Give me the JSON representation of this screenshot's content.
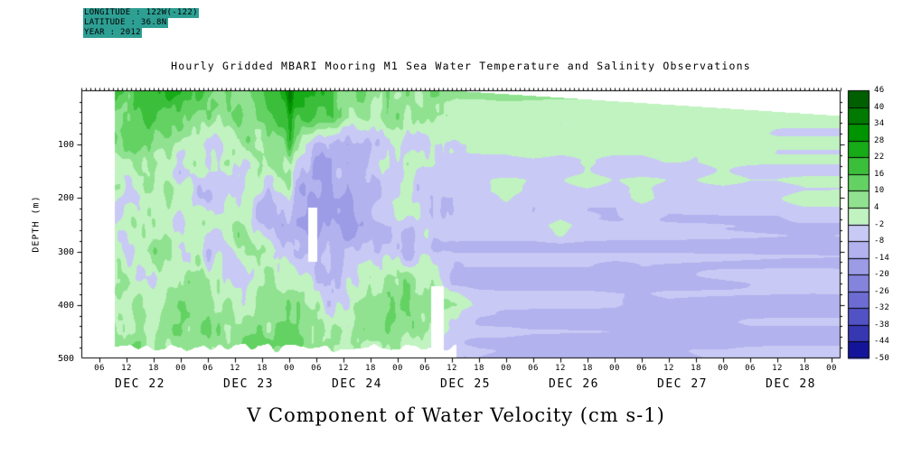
{
  "meta": {
    "line1": "LONGITUDE : 122W(-122)",
    "line2": "LATITUDE : 36.8N",
    "line3": "YEAR : 2012",
    "highlight_color": "#2e9f93"
  },
  "title": "Hourly Gridded MBARI Mooring M1 Sea Water Temperature and Salinity Observations",
  "caption": "V Component of Water Velocity (cm s-1)",
  "y_axis": {
    "label": "DEPTH (m)",
    "ticks": [
      "100",
      "200",
      "300",
      "400",
      "500"
    ]
  },
  "x_axis": {
    "hour_ticks": [
      "06",
      "12",
      "18",
      "00",
      "06",
      "12",
      "18",
      "00",
      "06",
      "12",
      "18",
      "00",
      "06",
      "12",
      "18",
      "00",
      "06",
      "12",
      "18",
      "00",
      "06",
      "12",
      "18",
      "00",
      "06",
      "12",
      "18",
      "00"
    ],
    "day_labels": [
      "DEC 22",
      "DEC 23",
      "DEC 24",
      "DEC 25",
      "DEC 26",
      "DEC 27",
      "DEC 28"
    ]
  },
  "colorbar": {
    "labels": [
      "46",
      "40",
      "34",
      "28",
      "22",
      "16",
      "10",
      "4",
      "-2",
      "-8",
      "-14",
      "-20",
      "-26",
      "-32",
      "-38",
      "-44",
      "-50"
    ]
  },
  "chart_data": {
    "type": "heatmap",
    "title": "Hourly Gridded MBARI Mooring M1 Sea Water Temperature and Salinity Observations",
    "ylabel": "DEPTH (m)",
    "units": "cm s-1",
    "x_days": [
      "DEC 22",
      "DEC 23",
      "DEC 24",
      "DEC 25",
      "DEC 26",
      "DEC 27",
      "DEC 28"
    ],
    "hours_per_column": 6,
    "depth_rows": [
      0,
      50,
      100,
      150,
      200,
      250,
      300,
      350,
      400,
      450,
      500
    ],
    "levels": [
      46,
      40,
      34,
      28,
      22,
      16,
      10,
      4,
      -2,
      -8,
      -14,
      -20,
      -26,
      -32,
      -38,
      -44,
      -50
    ],
    "colors": [
      "#005f00",
      "#007a00",
      "#009400",
      "#17ab17",
      "#3bbf3b",
      "#63d263",
      "#90e290",
      "#c0f3c0",
      "#c9c9f5",
      "#b2b2ee",
      "#9b9be6",
      "#8484dd",
      "#6c6cd2",
      "#5252c4",
      "#3737b2",
      "#14149b"
    ],
    "grid": [
      [
        16,
        18,
        14,
        20,
        22,
        16,
        12,
        18,
        26,
        20,
        12,
        8,
        8,
        6,
        4,
        4,
        6,
        5,
        4,
        4,
        5,
        4,
        4,
        3,
        4,
        3,
        3,
        3
      ],
      [
        12,
        14,
        10,
        16,
        14,
        10,
        8,
        12,
        18,
        14,
        8,
        5,
        4,
        3,
        3,
        3,
        4,
        3,
        2,
        3,
        3,
        2,
        3,
        2,
        3,
        2,
        2,
        2
      ],
      [
        8,
        5,
        9,
        7,
        3,
        -4,
        7,
        3,
        9,
        -8,
        -13,
        -6,
        1,
        -2,
        -3,
        -3,
        -3,
        1,
        -3,
        -3,
        -3,
        -3,
        1,
        -3,
        -3,
        1,
        -3,
        -3
      ],
      [
        5,
        -6,
        3,
        7,
        -6,
        3,
        -6,
        5,
        3,
        -15,
        -11,
        -5,
        -3,
        -4,
        -4,
        -4,
        -4,
        -4,
        -4,
        1,
        -4,
        -4,
        -4,
        -4,
        1,
        -4,
        -4,
        -4
      ],
      [
        3,
        5,
        -6,
        3,
        5,
        -9,
        3,
        -7,
        -5,
        -17,
        -13,
        -9,
        -4,
        -4,
        -5,
        -5,
        1,
        -5,
        -5,
        -5,
        -5,
        1,
        -5,
        -5,
        -5,
        -5,
        -5,
        1
      ],
      [
        7,
        -5,
        3,
        5,
        -7,
        3,
        5,
        -9,
        -13,
        -19,
        -15,
        -7,
        -6,
        -6,
        -6,
        -6,
        -6,
        -6,
        1,
        -6,
        -7,
        -7,
        -7,
        -7,
        -7,
        -7,
        -7,
        -7
      ],
      [
        5,
        3,
        -5,
        7,
        3,
        -7,
        3,
        5,
        -9,
        -15,
        -11,
        -5,
        -9,
        -9,
        -9,
        -9,
        -9,
        -9,
        -9,
        -9,
        -9,
        -9,
        -9,
        -9,
        -9,
        -9,
        -9,
        -9
      ],
      [
        7,
        5,
        3,
        -5,
        5,
        3,
        -7,
        3,
        3,
        -9,
        -7,
        3,
        7,
        3,
        -9,
        -9,
        -9,
        -9,
        -9,
        -9,
        -11,
        -9,
        -9,
        -9,
        -9,
        -9,
        -9,
        -9
      ],
      [
        5,
        7,
        5,
        3,
        7,
        5,
        3,
        7,
        5,
        3,
        -5,
        5,
        9,
        7,
        3,
        -7,
        -9,
        -9,
        -9,
        -9,
        -9,
        -11,
        -9,
        -9,
        -9,
        -9,
        -9,
        -9
      ],
      [
        7,
        9,
        7,
        5,
        9,
        7,
        5,
        9,
        7,
        5,
        3,
        7,
        5,
        3,
        -5,
        -7,
        -7,
        -9,
        -9,
        -9,
        -9,
        -9,
        -9,
        -9,
        -11,
        -9,
        -9,
        -9
      ],
      [
        7,
        7,
        9,
        7,
        7,
        9,
        7,
        7,
        9,
        7,
        5,
        5,
        3,
        -5,
        -7,
        -7,
        -7,
        -7,
        -9,
        -9,
        -9,
        -9,
        -9,
        -9,
        -9,
        -9,
        -9,
        -9
      ]
    ],
    "noise": {
      "mottle_amp": 8.5,
      "mottle_fade": [
        78,
        88
      ],
      "stripe_amp": 3.0,
      "stripe_start": 76
    },
    "missing": {
      "before_hour": 9.4,
      "ragged_bottom": {
        "until_hour": 85,
        "depth": 480,
        "jitter": 10
      },
      "rects": [
        {
          "h1": 52.2,
          "h2": 54.2,
          "d1": 218,
          "d2": 320
        },
        {
          "h1": 79.4,
          "h2": 82.2,
          "d1": 365,
          "d2": 490
        }
      ],
      "top_wedge": {
        "from_hour": 85,
        "slope_per_hour": 0.11
      }
    },
    "streak": {
      "hour": 48.2,
      "amp": 12,
      "depth_limit": 240
    }
  }
}
